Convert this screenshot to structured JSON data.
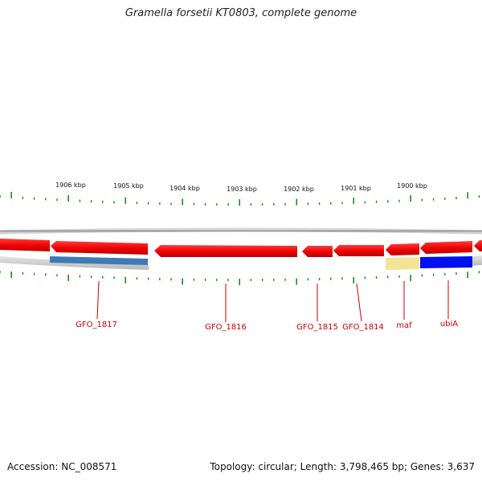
{
  "title": "Gramella forsetii KT0803, complete genome",
  "accession": "Accession: NC_008571",
  "topology": "Topology: circular; Length: 3,798,465 bp; Genes: 3,637",
  "colors": {
    "tick": "#1f8a1f",
    "gene_forward": "#ff0000",
    "gene_label": "#cc0000",
    "backbone": "#8a8a8a",
    "feature_steelblue": "#3d7ab8",
    "feature_khaki": "#f2e597",
    "feature_blue": "#0010ee"
  },
  "scale": {
    "unit": "kbp",
    "labels": [
      "1906 kbp",
      "1905 kbp",
      "1904 kbp",
      "1903 kbp",
      "1902 kbp",
      "1901 kbp",
      "1900 kbp"
    ]
  },
  "genes": [
    {
      "name": "GFO_1817",
      "strand": "-",
      "track_color": "steelblue"
    },
    {
      "name": "GFO_1816",
      "strand": "-",
      "track_color": "none"
    },
    {
      "name": "GFO_1815",
      "strand": "-",
      "track_color": "none"
    },
    {
      "name": "GFO_1814",
      "strand": "-",
      "track_color": "none"
    },
    {
      "name": "maf",
      "strand": "-",
      "track_color": "khaki"
    },
    {
      "name": "ubiA",
      "strand": "-",
      "track_color": "blue"
    }
  ]
}
